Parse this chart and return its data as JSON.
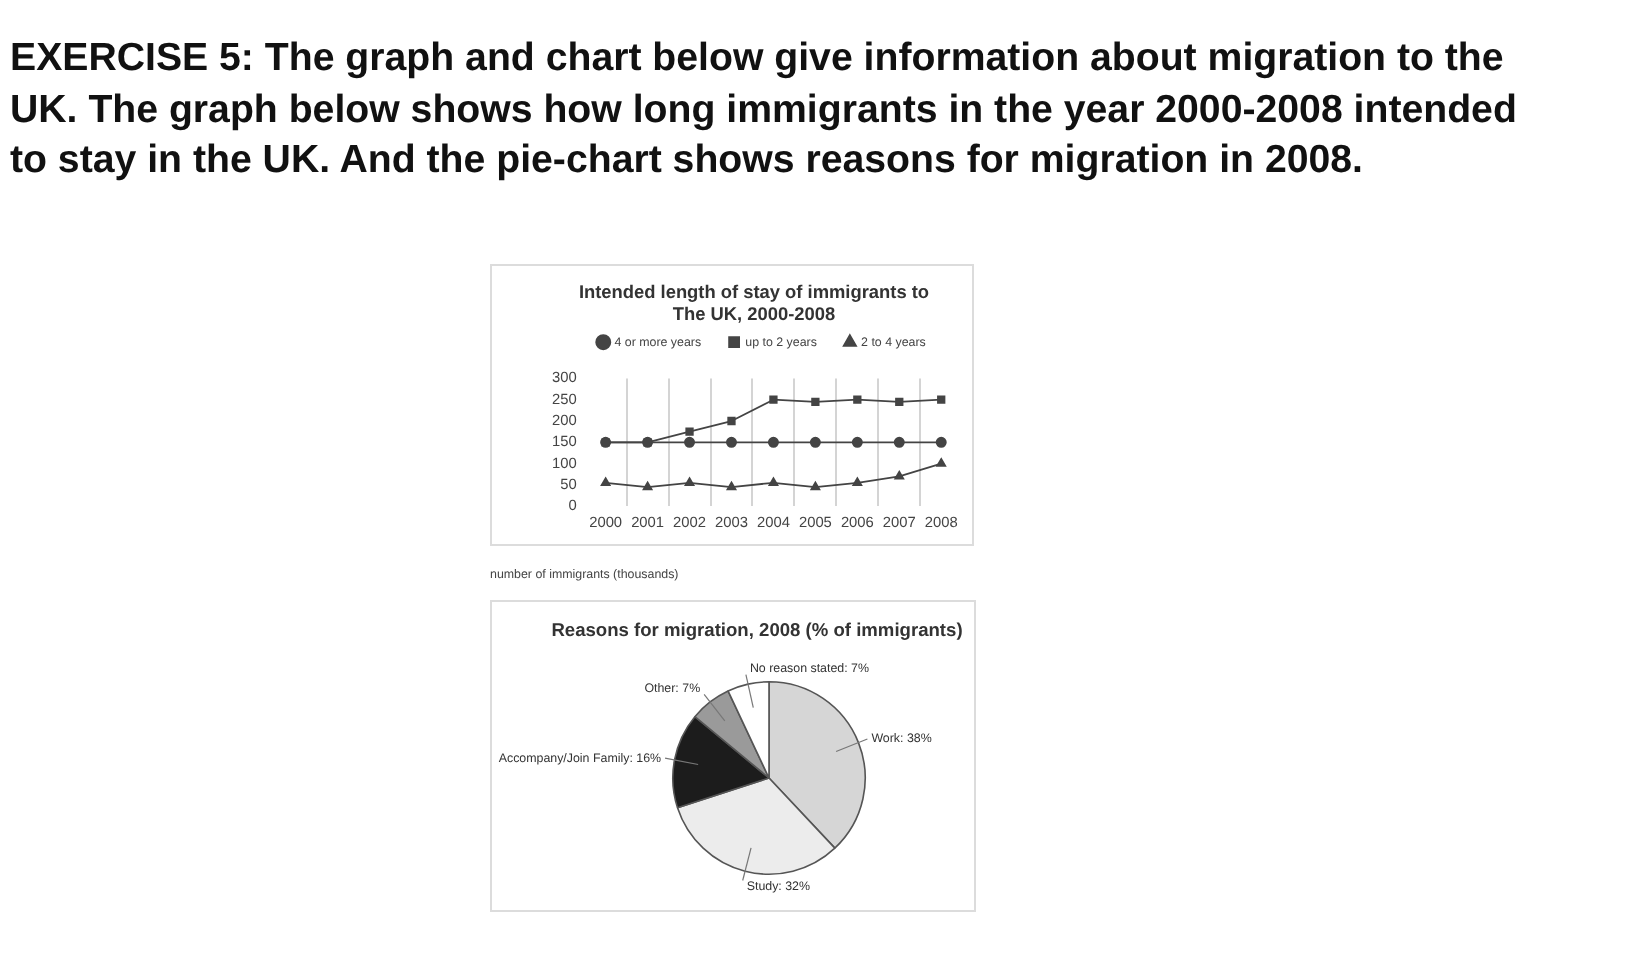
{
  "chart_data": [
    {
      "type": "line",
      "title": "Intended length of stay of immigrants to The UK, 2000-2008",
      "annotations": [
        "EXERCISE 5: The graph and chart below give information about migration to the UK. The graph below shows how long immigrants in the year 2000-2008 intended to stay in the UK. And the pie-chart shows reasons for migration in 2008.",
        "number of immigrants (thousands)"
      ],
      "categories": [
        "2000",
        "2001",
        "2002",
        "2003",
        "2004",
        "2005",
        "2006",
        "2007",
        "2008"
      ],
      "series": [
        {
          "name": "4 or more years",
          "color": "#444444",
          "marker": "circle",
          "values": [
            150,
            150,
            150,
            150,
            150,
            150,
            150,
            150,
            150
          ]
        },
        {
          "name": "up to 2 years",
          "color": "#444444",
          "marker": "square",
          "values": [
            150,
            150,
            175,
            200,
            250,
            245,
            250,
            245,
            250
          ]
        },
        {
          "name": "2 to 4 years",
          "color": "#444444",
          "marker": "triangle",
          "values": [
            55,
            45,
            55,
            45,
            55,
            45,
            55,
            70,
            100
          ]
        }
      ],
      "ylim": [
        0,
        300
      ],
      "yticks": [
        0,
        50,
        100,
        150,
        200,
        250,
        300
      ],
      "grid": "x",
      "legend": "top"
    },
    {
      "type": "pie",
      "title": "Reasons for migration, 2008 (% of immigrants)",
      "categories": [
        "Work",
        "Study",
        "Accompany/Join Family",
        "Other",
        "No reason stated"
      ],
      "values": [
        38,
        32,
        16,
        7,
        7
      ],
      "colors": [
        "#d6d6d6",
        "#ececec",
        "#1c1c1c",
        "#9a9a9a",
        "#ffffff"
      ],
      "value_labels": [
        "38%",
        "32%",
        "16%",
        "7%",
        "7%"
      ]
    }
  ]
}
